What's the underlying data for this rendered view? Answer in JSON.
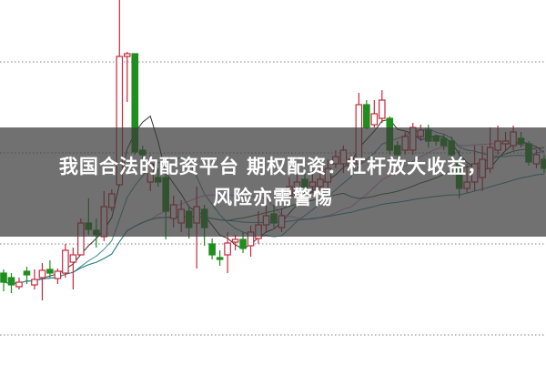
{
  "title": {
    "line1": "我国合法的配资平台 期权配资：杠杆放大收益，",
    "line2": "风险亦需警惕"
  },
  "chart_data": {
    "type": "candlestick",
    "grid": "horizontal-dotted",
    "colors": {
      "up": "#c8283c",
      "down": "#1e8f1e",
      "grid": "#9a9a9a",
      "banner": "#3a3a3a"
    },
    "moving_averages": [
      {
        "window": 5,
        "color": "#333333"
      },
      {
        "window": 10,
        "color": "#3f8f8f"
      },
      {
        "window": 20,
        "color": "#d68fd0"
      },
      {
        "window": 30,
        "color": "#2f6b2f"
      },
      {
        "window": 60,
        "color": "#2c8a9a"
      }
    ],
    "ohlc_fields": [
      "open",
      "high",
      "low",
      "close"
    ],
    "candles": [
      [
        10.0,
        10.4,
        8.0,
        9.0
      ],
      [
        9.5,
        10.0,
        7.8,
        8.7
      ],
      [
        8.5,
        9.5,
        8.2,
        9.0
      ],
      [
        10.2,
        10.7,
        8.8,
        9.8
      ],
      [
        8.7,
        10.4,
        8.2,
        9.3
      ],
      [
        9.5,
        11.1,
        7.0,
        10.3
      ],
      [
        10.4,
        11.4,
        9.5,
        10.0
      ],
      [
        9.4,
        10.5,
        8.8,
        10.2
      ],
      [
        10.0,
        13.2,
        9.5,
        12.5
      ],
      [
        11.2,
        12.8,
        8.2,
        12.0
      ],
      [
        12.0,
        16.0,
        12.0,
        15.5
      ],
      [
        15.5,
        18.2,
        14.2,
        14.8
      ],
      [
        14.7,
        16.0,
        12.8,
        14.2
      ],
      [
        14.0,
        19.0,
        13.5,
        17.3
      ],
      [
        17.2,
        19.2,
        16.8,
        18.7
      ],
      [
        19.7,
        40.0,
        19.5,
        33.8
      ],
      [
        33.8,
        34.3,
        28.8,
        34.1
      ],
      [
        34.1,
        34.1,
        23.0,
        23.3
      ],
      [
        23.5,
        24.0,
        22.5,
        23.0
      ],
      [
        20.0,
        23.0,
        19.0,
        22.0
      ],
      [
        20.5,
        21.5,
        19.5,
        20.0
      ],
      [
        20.5,
        21.0,
        13.7,
        16.8
      ],
      [
        16.0,
        18.5,
        15.0,
        17.5
      ],
      [
        15.5,
        18.0,
        14.5,
        17.0
      ],
      [
        16.8,
        17.4,
        13.8,
        15.0
      ],
      [
        15.5,
        19.5,
        10.5,
        17.3
      ],
      [
        17.0,
        17.5,
        13.0,
        15.0
      ],
      [
        13.2,
        13.8,
        11.5,
        12.0
      ],
      [
        11.7,
        12.5,
        10.8,
        11.5
      ],
      [
        12.0,
        14.5,
        10.0,
        13.3
      ],
      [
        13.4,
        14.2,
        12.5,
        13.7
      ],
      [
        13.7,
        14.5,
        12.2,
        12.7
      ],
      [
        13.0,
        15.2,
        11.8,
        14.5
      ],
      [
        13.8,
        16.8,
        13.2,
        15.3
      ],
      [
        15.3,
        17.5,
        14.5,
        16.3
      ],
      [
        16.5,
        17.5,
        15.0,
        15.5
      ],
      [
        15.0,
        17.0,
        14.5,
        16.3
      ],
      [
        18.5,
        20.5,
        18.0,
        19.5
      ],
      [
        18.5,
        21.0,
        17.5,
        20.0
      ],
      [
        20.3,
        21.0,
        18.5,
        19.3
      ],
      [
        19.5,
        21.2,
        18.8,
        20.0
      ],
      [
        19.5,
        21.5,
        19.0,
        20.3
      ],
      [
        20.0,
        22.5,
        19.0,
        21.5
      ],
      [
        22.0,
        23.5,
        21.5,
        22.8
      ],
      [
        22.0,
        24.0,
        21.0,
        23.5
      ],
      [
        21.5,
        23.0,
        21.0,
        22.5
      ],
      [
        22.0,
        29.8,
        21.5,
        28.5
      ],
      [
        28.5,
        29.0,
        25.8,
        26.0
      ],
      [
        26.3,
        29.0,
        26.0,
        27.5
      ],
      [
        27.0,
        30.1,
        26.5,
        29.0
      ],
      [
        27.0,
        27.2,
        23.0,
        23.5
      ],
      [
        24.0,
        24.5,
        22.5,
        23.0
      ],
      [
        23.5,
        25.5,
        23.0,
        25.0
      ],
      [
        23.5,
        26.5,
        23.0,
        26.0
      ],
      [
        25.0,
        26.3,
        24.5,
        25.7
      ],
      [
        25.7,
        26.3,
        23.8,
        24.5
      ],
      [
        25.0,
        25.2,
        24.0,
        24.5
      ],
      [
        24.8,
        25.2,
        23.5,
        24.0
      ],
      [
        24.5,
        25.0,
        22.5,
        23.0
      ],
      [
        22.0,
        23.5,
        18.2,
        19.3
      ],
      [
        19.3,
        22.0,
        18.8,
        20.0
      ],
      [
        20.0,
        24.0,
        19.0,
        22.0
      ],
      [
        20.5,
        24.0,
        19.0,
        22.5
      ],
      [
        21.5,
        26.0,
        21.0,
        23.8
      ],
      [
        23.5,
        26.2,
        23.0,
        24.5
      ],
      [
        24.2,
        25.5,
        23.5,
        24.5
      ],
      [
        24.0,
        26.2,
        23.5,
        25.5
      ],
      [
        24.8,
        25.5,
        23.8,
        24.2
      ],
      [
        24.2,
        24.5,
        21.8,
        22.2
      ],
      [
        22.0,
        23.5,
        21.5,
        23.0
      ],
      [
        22.5,
        23.0,
        21.0,
        21.5
      ]
    ]
  }
}
